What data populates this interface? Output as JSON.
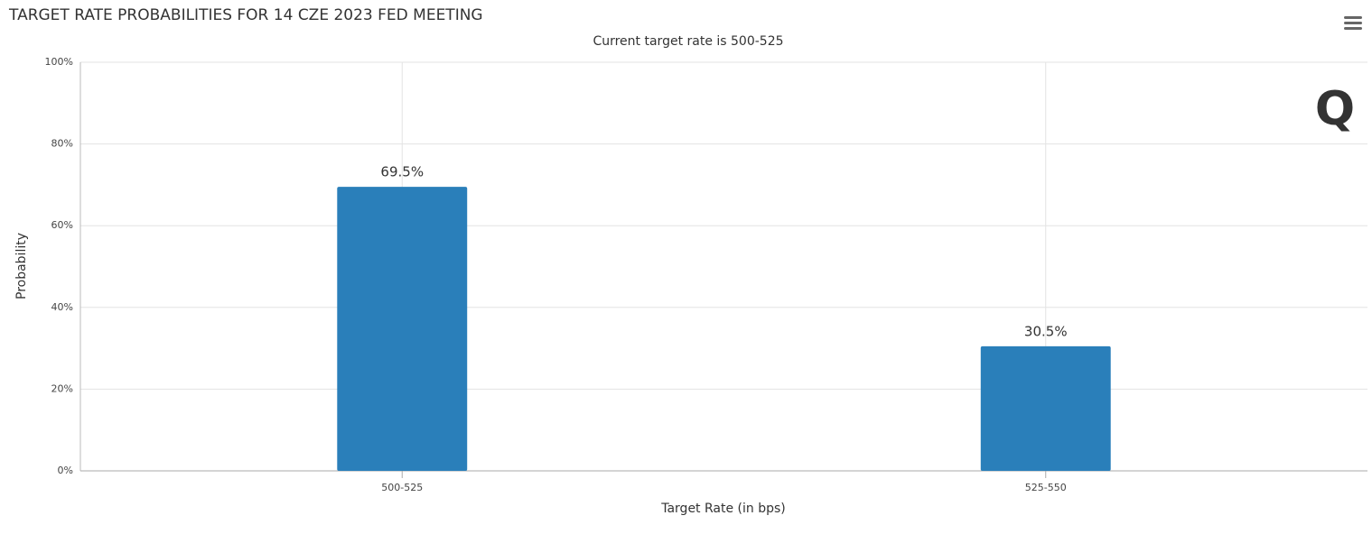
{
  "chart_data": {
    "type": "bar",
    "title": "TARGET RATE PROBABILITIES FOR 14 CZE 2023 FED MEETING",
    "subtitle": "Current target rate is 500-525",
    "x_label": "Target Rate (in bps)",
    "y_label": "Probability",
    "categories": [
      "500-525",
      "525-550"
    ],
    "values": [
      69.5,
      30.5
    ],
    "value_labels": [
      "69.5%",
      "30.5%"
    ],
    "color": "#2a7fba",
    "ylim": [
      0,
      100
    ],
    "yticks": [
      {
        "value": 0,
        "label": "0%"
      },
      {
        "value": 20,
        "label": "20%"
      },
      {
        "value": 40,
        "label": "40%"
      },
      {
        "value": 60,
        "label": "60%"
      },
      {
        "value": 80,
        "label": "80%"
      },
      {
        "value": 100,
        "label": "100%"
      }
    ],
    "grid": true
  }
}
